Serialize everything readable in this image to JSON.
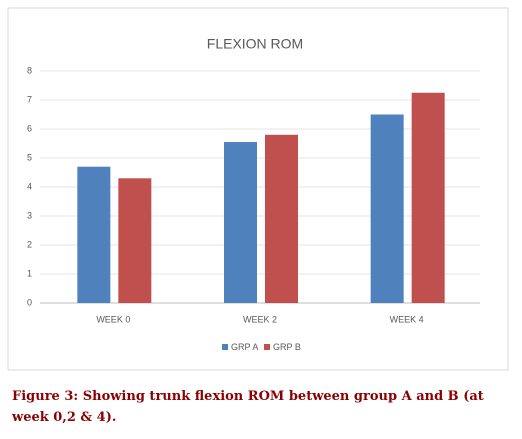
{
  "chart_data": {
    "type": "bar",
    "title": "FLEXION ROM",
    "categories": [
      "WEEK 0",
      "WEEK 2",
      "WEEK 4"
    ],
    "series": [
      {
        "name": "GRP A",
        "color": "#4f81bd",
        "values": [
          4.7,
          5.55,
          6.5
        ]
      },
      {
        "name": "GRP B",
        "color": "#c0504d",
        "values": [
          4.3,
          5.8,
          7.25
        ]
      }
    ],
    "ylim": [
      0,
      8
    ],
    "yticks": [
      0,
      1,
      2,
      3,
      4,
      5,
      6,
      7,
      8
    ],
    "grid": true,
    "legend": "bottom"
  },
  "caption": "Figure 3: Showing trunk flexion ROM between group A and B (at week 0,2 & 4)."
}
